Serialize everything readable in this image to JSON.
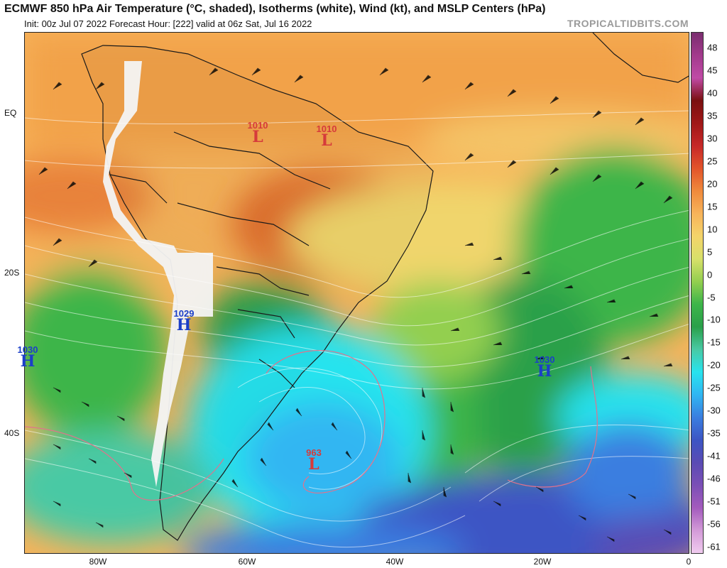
{
  "header": {
    "title": "ECMWF 850 hPa Air Temperature (°C, shaded), Isotherms (white), Wind (kt), and MSLP Centers (hPa)",
    "subtitle": "Init: 00z Jul 07 2022   Forecast Hour: [222]   valid at 06z Sat, Jul 16 2022",
    "brand": "TROPICALTIDBITS.COM"
  },
  "axes": {
    "lat_labels": [
      "EQ",
      "20S",
      "40S"
    ],
    "lon_labels": [
      "80W",
      "60W",
      "40W",
      "20W",
      "0"
    ]
  },
  "pressure_centers": [
    {
      "type": "L",
      "value": "1010"
    },
    {
      "type": "L",
      "value": "1010"
    },
    {
      "type": "H",
      "value": "1029"
    },
    {
      "type": "H",
      "value": "1030"
    },
    {
      "type": "H",
      "value": "1030"
    },
    {
      "type": "L",
      "value": "963"
    }
  ],
  "colorbar": {
    "labels": [
      "48",
      "45",
      "40",
      "35",
      "30",
      "25",
      "20",
      "15",
      "10",
      "5",
      "0",
      "-5",
      "-10",
      "-15",
      "-20",
      "-25",
      "-30",
      "-35",
      "-41",
      "-46",
      "-51",
      "-56",
      "-61"
    ],
    "colors": [
      "#7a2d6f",
      "#a23a8c",
      "#c04aa6",
      "#7a1010",
      "#a01818",
      "#c62828",
      "#e2542a",
      "#f08a3c",
      "#f7b35a",
      "#f4d46a",
      "#d8e06a",
      "#93cf4f",
      "#3db54a",
      "#2aa04a",
      "#48c9a4",
      "#28e3ee",
      "#30b6f2",
      "#3a7ee0",
      "#3c55c4",
      "#5a4bb4",
      "#7b4fb6",
      "#a35bbd",
      "#d39ad8",
      "#f0cbef"
    ]
  }
}
